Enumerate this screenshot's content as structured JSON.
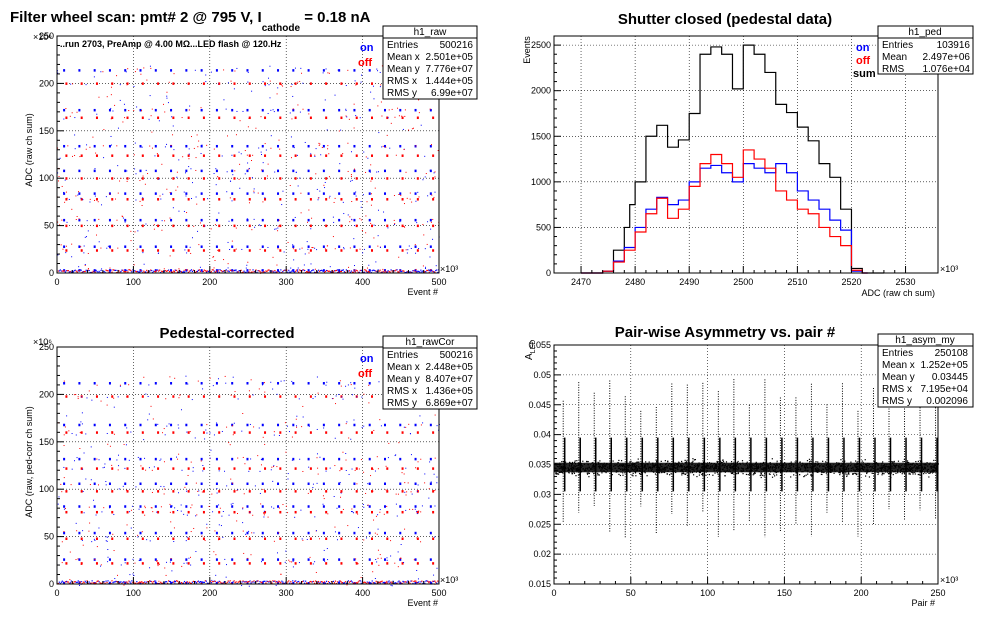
{
  "colors": {
    "on": "#0000ff",
    "off": "#ff0000",
    "sum": "#000000",
    "frame": "#000000",
    "grid": "#000000"
  },
  "chart_data": [
    {
      "type": "scatter",
      "title": "Filter wheel scan: pmt#   2 @   795 V, I",
      "title_sub": "cathode",
      "title_tail": "  = 0.18 nA",
      "annotation": "..run 2703, PreAmp @ 4.00 MΩ...LED flash @  120.Hz",
      "xlabel": "Event #",
      "ylabel": "ADC (raw ch sum)",
      "xmult": "×10³",
      "ymult": "×10⁶",
      "xlim": [
        0,
        500
      ],
      "ylim": [
        0,
        250
      ],
      "xticks": [
        0,
        100,
        200,
        300,
        400,
        500
      ],
      "yticks": [
        0,
        50,
        100,
        150,
        200,
        250
      ],
      "legend": [
        "on",
        "off"
      ],
      "levels": [
        214,
        200,
        172,
        164,
        134,
        124,
        108,
        100,
        84,
        78,
        56,
        50,
        28,
        24,
        3
      ],
      "stats": {
        "name": "h1_raw",
        "rows": [
          [
            "Entries",
            "500216"
          ],
          [
            "Mean x",
            "2.501e+05"
          ],
          [
            "Mean y",
            "7.776e+07"
          ],
          [
            "RMS x",
            "1.444e+05"
          ],
          [
            "RMS y",
            "6.99e+07"
          ]
        ]
      }
    },
    {
      "type": "line",
      "title": "Shutter closed (pedestal data)",
      "xlabel": "ADC (raw ch sum)",
      "ylabel": "Events",
      "xmult": "×10³",
      "xlim": [
        2465,
        2536
      ],
      "ylim": [
        0,
        2600
      ],
      "xticks": [
        2470,
        2480,
        2490,
        2500,
        2510,
        2520,
        2530
      ],
      "yticks": [
        0,
        500,
        1000,
        1500,
        2000,
        2500
      ],
      "legend": [
        "on",
        "off",
        "sum"
      ],
      "series": [
        {
          "name": "sum",
          "x": [
            2470,
            2474,
            2476,
            2478,
            2479,
            2480,
            2482,
            2484,
            2486,
            2488,
            2490,
            2492,
            2494,
            2496,
            2498,
            2500,
            2502,
            2504,
            2506,
            2508,
            2510,
            2512,
            2514,
            2516,
            2518,
            2520,
            2522,
            2525
          ],
          "y": [
            0,
            20,
            250,
            500,
            750,
            1000,
            1500,
            1620,
            1380,
            1460,
            1750,
            2400,
            2480,
            2400,
            2020,
            2500,
            2400,
            2200,
            1850,
            1760,
            1600,
            1450,
            1200,
            1050,
            700,
            50,
            0,
            0
          ]
        },
        {
          "name": "on",
          "x": [
            2470,
            2474,
            2476,
            2478,
            2480,
            2482,
            2484,
            2486,
            2488,
            2490,
            2492,
            2494,
            2496,
            2498,
            2500,
            2502,
            2504,
            2506,
            2508,
            2510,
            2512,
            2514,
            2516,
            2518,
            2520,
            2522
          ],
          "y": [
            0,
            20,
            130,
            280,
            500,
            700,
            830,
            750,
            800,
            1000,
            1150,
            1180,
            1100,
            1000,
            1200,
            1150,
            1100,
            1200,
            1100,
            900,
            800,
            700,
            580,
            470,
            20,
            0
          ]
        },
        {
          "name": "off",
          "x": [
            2470,
            2474,
            2476,
            2478,
            2480,
            2482,
            2484,
            2486,
            2488,
            2490,
            2492,
            2494,
            2496,
            2498,
            2500,
            2502,
            2504,
            2506,
            2508,
            2510,
            2512,
            2514,
            2516,
            2518,
            2520,
            2522
          ],
          "y": [
            0,
            20,
            120,
            250,
            450,
            650,
            820,
            600,
            700,
            950,
            1200,
            1300,
            1200,
            1050,
            1350,
            1250,
            1150,
            900,
            800,
            700,
            650,
            500,
            400,
            300,
            30,
            0
          ]
        }
      ],
      "stats": {
        "name": "h1_ped",
        "rows": [
          [
            "Entries",
            "103916"
          ],
          [
            "Mean",
            "2.497e+06"
          ],
          [
            "RMS",
            "1.076e+04"
          ]
        ]
      }
    },
    {
      "type": "scatter",
      "title": "Pedestal-corrected",
      "xlabel": "Event #",
      "ylabel": "ADC (raw, ped-corr ch sum)",
      "xmult": "×10³",
      "ymult": "×10⁶",
      "xlim": [
        0,
        500
      ],
      "ylim": [
        0,
        250
      ],
      "xticks": [
        0,
        100,
        200,
        300,
        400,
        500
      ],
      "yticks": [
        0,
        50,
        100,
        150,
        200,
        250
      ],
      "legend": [
        "on",
        "off"
      ],
      "levels": [
        212,
        198,
        168,
        160,
        132,
        122,
        106,
        98,
        82,
        76,
        54,
        48,
        26,
        22,
        1
      ],
      "stats": {
        "name": "h1_rawCor",
        "rows": [
          [
            "Entries",
            "500216"
          ],
          [
            "Mean x",
            "2.448e+05"
          ],
          [
            "Mean y",
            "8.407e+07"
          ],
          [
            "RMS x",
            "1.436e+05"
          ],
          [
            "RMS y",
            "6.869e+07"
          ]
        ]
      }
    },
    {
      "type": "scatter",
      "title": "Pair-wise Asymmetry vs. pair #",
      "xlabel": "Pair #",
      "ylabel": "A",
      "ylabel_sub": "LED",
      "xmult": "×10³",
      "xlim": [
        0,
        250
      ],
      "ylim": [
        0.015,
        0.055
      ],
      "xticks": [
        0,
        50,
        100,
        150,
        200,
        250
      ],
      "yticks": [
        0.015,
        0.02,
        0.025,
        0.03,
        0.035,
        0.04,
        0.045,
        0.05,
        0.055
      ],
      "center": 0.0345,
      "stats": {
        "name": "h1_asym_my",
        "rows": [
          [
            "Entries",
            "250108"
          ],
          [
            "Mean x",
            "1.252e+05"
          ],
          [
            "Mean y",
            "0.03445"
          ],
          [
            "RMS x",
            "7.195e+04"
          ],
          [
            "RMS y",
            "0.002096"
          ]
        ]
      }
    }
  ]
}
